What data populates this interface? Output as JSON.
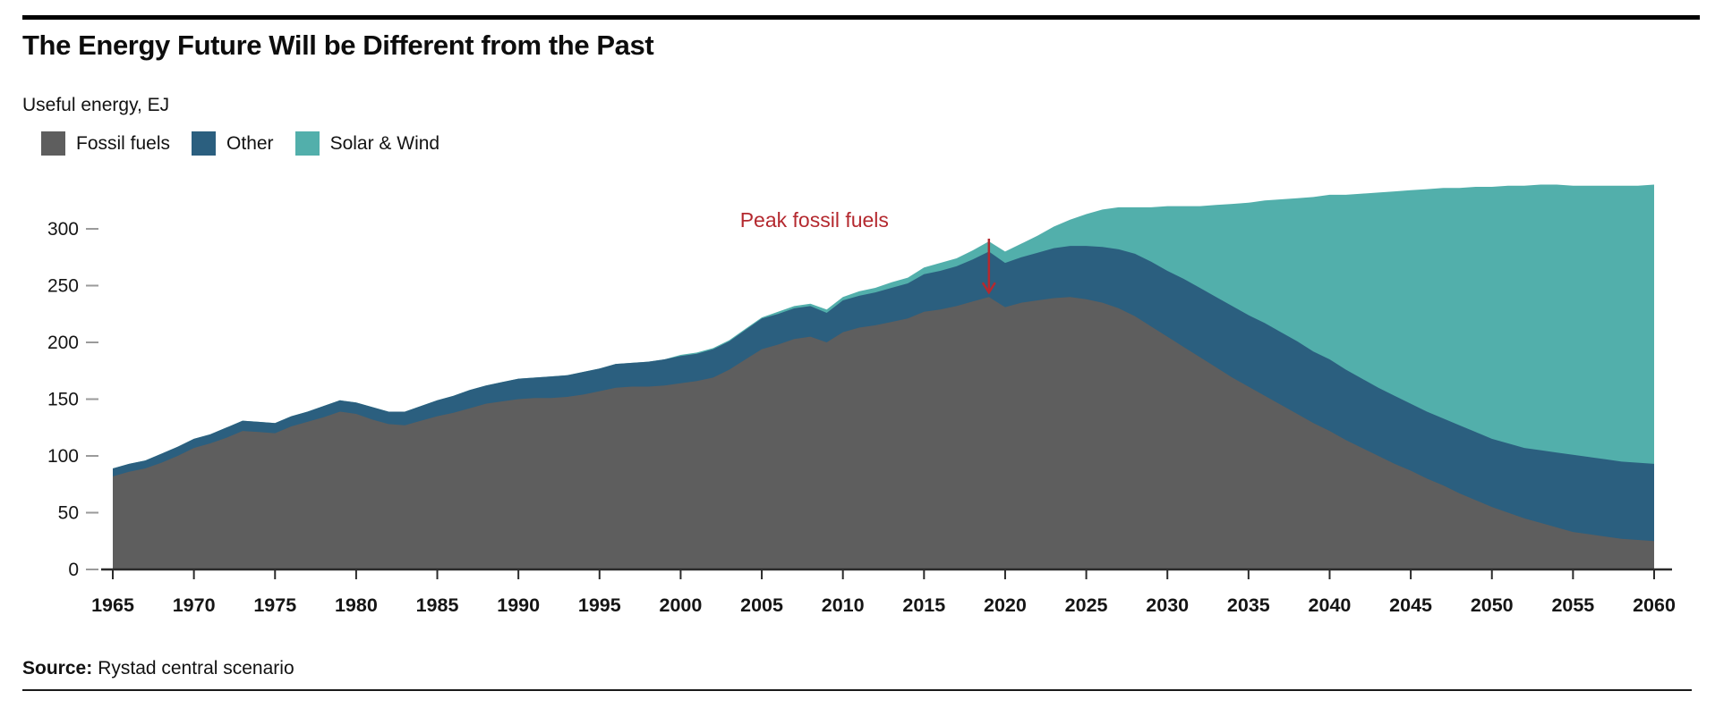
{
  "page": {
    "title": "The Energy Future Will be Different from the Past",
    "subtitle": "Useful energy, EJ",
    "source_label": "Source:",
    "source_text": "Rystad central scenario"
  },
  "legend": [
    {
      "label": "Fossil fuels",
      "color": "#5e5e5e"
    },
    {
      "label": "Other",
      "color": "#2b5f7f"
    },
    {
      "label": "Solar & Wind",
      "color": "#52afab"
    }
  ],
  "annotation": {
    "text": "Peak fossil fuels",
    "year": 2019,
    "color": "#b4292f"
  },
  "colors": {
    "fossil": "#5e5e5e",
    "other": "#2b5f7f",
    "solar_wind": "#52afab",
    "annotation_red": "#b4292f",
    "axis": "#2b2b2b",
    "tick_dash": "#9a9a9a",
    "text": "#151515"
  },
  "chart_data": {
    "type": "area",
    "stacked": true,
    "title": "The Energy Future Will be Different from the Past",
    "ylabel": "Useful energy, EJ",
    "xlabel": "",
    "x_start": 1965,
    "x_end": 2060,
    "x_step": 1,
    "x_tick_years": [
      1965,
      1970,
      1975,
      1980,
      1985,
      1990,
      1995,
      2000,
      2005,
      2010,
      2015,
      2020,
      2025,
      2030,
      2035,
      2040,
      2045,
      2050,
      2055,
      2060
    ],
    "y_ticks": [
      0,
      50,
      100,
      150,
      200,
      250,
      300
    ],
    "ylim": [
      0,
      350
    ],
    "grid": false,
    "legend_position": "top-left",
    "annotation": {
      "text": "Peak fossil fuels",
      "year": 2019
    },
    "series": [
      {
        "name": "Fossil fuels",
        "color": "#5e5e5e",
        "values": [
          82,
          86,
          89,
          94,
          100,
          107,
          111,
          116,
          122,
          121,
          120,
          126,
          130,
          134,
          139,
          137,
          132,
          128,
          127,
          131,
          135,
          138,
          142,
          146,
          148,
          150,
          151,
          151,
          152,
          154,
          157,
          160,
          161,
          161,
          162,
          164,
          166,
          169,
          176,
          185,
          194,
          198,
          203,
          205,
          200,
          209,
          213,
          215,
          218,
          221,
          227,
          229,
          232,
          236,
          240,
          231,
          235,
          237,
          239,
          240,
          238,
          235,
          230,
          223,
          214,
          205,
          196,
          187,
          178,
          169,
          161,
          153,
          145,
          137,
          129,
          122,
          114,
          107,
          100,
          93,
          87,
          80,
          74,
          67,
          61,
          55,
          50,
          45,
          41,
          37,
          33,
          31,
          29,
          27,
          26,
          25
        ]
      },
      {
        "name": "Other",
        "color": "#2b5f7f",
        "values": [
          7,
          7,
          7,
          8,
          8,
          8,
          8,
          9,
          9,
          9,
          9,
          9,
          9,
          10,
          10,
          10,
          11,
          11,
          12,
          13,
          14,
          15,
          16,
          16,
          17,
          18,
          18,
          19,
          19,
          20,
          20,
          21,
          21,
          22,
          23,
          24,
          24,
          25,
          25,
          26,
          27,
          27,
          27,
          27,
          26,
          28,
          28,
          29,
          30,
          31,
          33,
          34,
          35,
          37,
          40,
          39,
          40,
          42,
          44,
          45,
          47,
          49,
          52,
          55,
          57,
          58,
          60,
          61,
          62,
          63,
          63,
          64,
          64,
          64,
          63,
          63,
          62,
          61,
          60,
          60,
          59,
          59,
          59,
          60,
          60,
          60,
          61,
          62,
          64,
          66,
          68,
          68,
          68,
          68,
          68,
          68
        ]
      },
      {
        "name": "Solar & Wind",
        "color": "#52afab",
        "values": [
          0,
          0,
          0,
          0,
          0,
          0,
          0,
          0,
          0,
          0,
          0,
          0,
          0,
          0,
          0,
          0,
          0,
          0,
          0,
          0,
          0,
          0,
          0,
          0,
          0,
          0,
          0,
          0,
          0,
          0,
          0,
          0,
          0,
          0,
          0,
          1,
          1,
          1,
          1,
          1,
          1,
          2,
          2,
          2,
          3,
          3,
          4,
          4,
          5,
          5,
          6,
          7,
          7,
          8,
          9,
          10,
          12,
          15,
          19,
          23,
          28,
          33,
          37,
          41,
          48,
          57,
          64,
          72,
          81,
          90,
          99,
          108,
          117,
          126,
          136,
          145,
          154,
          163,
          172,
          180,
          188,
          196,
          203,
          209,
          216,
          222,
          227,
          231,
          234,
          236,
          237,
          239,
          241,
          243,
          244,
          246
        ]
      }
    ]
  }
}
